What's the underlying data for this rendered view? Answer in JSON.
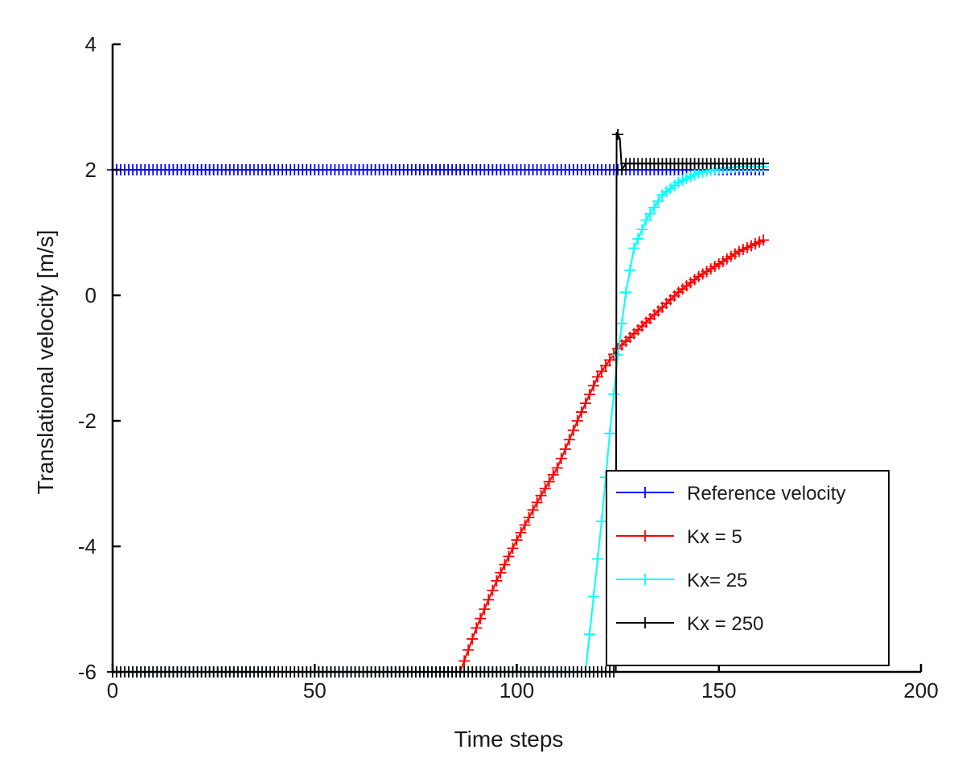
{
  "chart_data": {
    "type": "line",
    "title": "",
    "xlabel": "Time steps",
    "ylabel": "Translational velocity  [m/s]",
    "xlim": [
      0,
      200
    ],
    "ylim": [
      -6,
      4
    ],
    "xticks": [
      0,
      50,
      100,
      150,
      200
    ],
    "yticks": [
      -6,
      -4,
      -2,
      0,
      2,
      4
    ],
    "xtick_labels": [
      "0",
      "50",
      "100",
      "150",
      "200"
    ],
    "ytick_labels": [
      "-6",
      "-4",
      "-2",
      "0",
      "2",
      "4"
    ],
    "grid": false,
    "legend_position": "bottom-right",
    "x_end": 161,
    "series": [
      {
        "name": "Reference velocity",
        "color": "#0000ff",
        "marker": "+",
        "points": [
          [
            0,
            2.0
          ],
          [
            161,
            2.0
          ]
        ]
      },
      {
        "name": "Kx = 5",
        "color": "#ff0000",
        "marker": "+",
        "points": [
          [
            0,
            -6.0
          ],
          [
            86,
            -6.0
          ],
          [
            90,
            -5.3
          ],
          [
            95,
            -4.55
          ],
          [
            100,
            -3.9
          ],
          [
            105,
            -3.3
          ],
          [
            110,
            -2.75
          ],
          [
            115,
            -2.0
          ],
          [
            120,
            -1.3
          ],
          [
            125,
            -0.85
          ],
          [
            130,
            -0.55
          ],
          [
            135,
            -0.25
          ],
          [
            140,
            0.05
          ],
          [
            145,
            0.3
          ],
          [
            150,
            0.5
          ],
          [
            155,
            0.7
          ],
          [
            161,
            0.88
          ]
        ]
      },
      {
        "name": "Kx= 25",
        "color": "#00ffff",
        "marker": "+",
        "points": [
          [
            0,
            -6.0
          ],
          [
            117,
            -6.0
          ],
          [
            119,
            -4.8
          ],
          [
            121,
            -3.6
          ],
          [
            123,
            -2.2
          ],
          [
            125,
            -0.95
          ],
          [
            127,
            0.05
          ],
          [
            129,
            0.75
          ],
          [
            132,
            1.2
          ],
          [
            136,
            1.6
          ],
          [
            140,
            1.8
          ],
          [
            145,
            1.95
          ],
          [
            150,
            2.02
          ],
          [
            155,
            2.05
          ],
          [
            161,
            2.05
          ]
        ]
      },
      {
        "name": "Kx = 250",
        "color": "#000000",
        "marker": "+",
        "points": [
          [
            0,
            -6.0
          ],
          [
            124.5,
            -6.0
          ],
          [
            124.7,
            2.6
          ],
          [
            125.5,
            2.5
          ],
          [
            126,
            2.0
          ],
          [
            127,
            2.1
          ],
          [
            130,
            2.1
          ],
          [
            140,
            2.1
          ],
          [
            150,
            2.1
          ],
          [
            161,
            2.1
          ]
        ]
      }
    ]
  }
}
